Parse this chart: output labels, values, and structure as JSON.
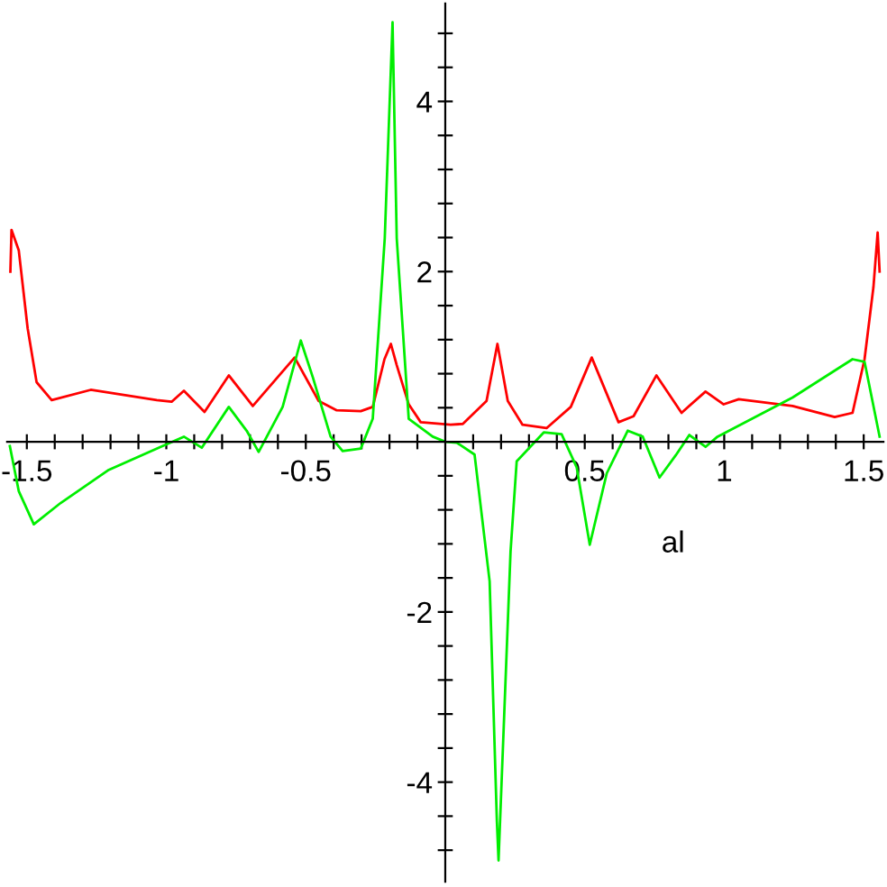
{
  "chart_data": {
    "type": "line",
    "xlabel": "al",
    "xlim": [
      -1.5708,
      1.5708
    ],
    "ylim": [
      -5.17,
      5.15
    ],
    "xticks": [
      {
        "value": -1.5,
        "label": "-1.5"
      },
      {
        "value": -1.4,
        "label": null
      },
      {
        "value": -1.3,
        "label": null
      },
      {
        "value": -1.2,
        "label": null
      },
      {
        "value": -1.1,
        "label": null
      },
      {
        "value": -1,
        "label": "-1"
      },
      {
        "value": -0.9,
        "label": null
      },
      {
        "value": -0.8,
        "label": null
      },
      {
        "value": -0.7,
        "label": null
      },
      {
        "value": -0.6,
        "label": null
      },
      {
        "value": -0.5,
        "label": "-0.5"
      },
      {
        "value": -0.4,
        "label": null
      },
      {
        "value": -0.3,
        "label": null
      },
      {
        "value": -0.2,
        "label": null
      },
      {
        "value": -0.1,
        "label": null
      },
      {
        "value": 0.1,
        "label": null
      },
      {
        "value": 0.2,
        "label": null
      },
      {
        "value": 0.3,
        "label": null
      },
      {
        "value": 0.4,
        "label": null
      },
      {
        "value": 0.5,
        "label": "0.5"
      },
      {
        "value": 0.6,
        "label": null
      },
      {
        "value": 0.7,
        "label": null
      },
      {
        "value": 0.8,
        "label": null
      },
      {
        "value": 0.9,
        "label": null
      },
      {
        "value": 1,
        "label": "1"
      },
      {
        "value": 1.1,
        "label": null
      },
      {
        "value": 1.2,
        "label": null
      },
      {
        "value": 1.3,
        "label": null
      },
      {
        "value": 1.4,
        "label": null
      },
      {
        "value": 1.5,
        "label": "1.5"
      }
    ],
    "yticks": [
      {
        "value": -4.8,
        "label": null
      },
      {
        "value": -4.4,
        "label": null
      },
      {
        "value": -4,
        "label": "-4"
      },
      {
        "value": -3.6,
        "label": null
      },
      {
        "value": -3.2,
        "label": null
      },
      {
        "value": -2.8,
        "label": null
      },
      {
        "value": -2.4,
        "label": null
      },
      {
        "value": -2,
        "label": "-2"
      },
      {
        "value": -1.6,
        "label": null
      },
      {
        "value": -1.2,
        "label": null
      },
      {
        "value": -0.8,
        "label": null
      },
      {
        "value": -0.4,
        "label": null
      },
      {
        "value": 0.4,
        "label": null
      },
      {
        "value": 0.8,
        "label": null
      },
      {
        "value": 1.2,
        "label": null
      },
      {
        "value": 1.6,
        "label": null
      },
      {
        "value": 2,
        "label": "2"
      },
      {
        "value": 2.4,
        "label": null
      },
      {
        "value": 2.8,
        "label": null
      },
      {
        "value": 3.2,
        "label": null
      },
      {
        "value": 3.6,
        "label": null
      },
      {
        "value": 4,
        "label": "4"
      },
      {
        "value": 4.4,
        "label": null
      },
      {
        "value": 4.8,
        "label": null
      }
    ],
    "grid": false,
    "legend": false,
    "marker": "none",
    "line_style": "solid",
    "series": [
      {
        "color": "#ff0000",
        "x": [
          -1.559,
          -1.555,
          -1.529,
          -1.497,
          -1.465,
          -1.411,
          -1.271,
          -1.034,
          -0.981,
          -0.937,
          -0.863,
          -0.776,
          -0.69,
          -0.54,
          -0.454,
          -0.389,
          -0.303,
          -0.26,
          -0.218,
          -0.195,
          -0.174,
          -0.131,
          -0.088,
          0.019,
          0.063,
          0.148,
          0.187,
          0.224,
          0.277,
          0.363,
          0.45,
          0.525,
          0.621,
          0.675,
          0.757,
          0.847,
          0.933,
          0.998,
          1.052,
          1.245,
          1.396,
          1.46,
          1.503,
          1.535,
          1.55,
          1.557
        ],
        "values": [
          2.0,
          2.49,
          2.25,
          1.33,
          0.7,
          0.49,
          0.61,
          0.49,
          0.47,
          0.6,
          0.35,
          0.78,
          0.42,
          0.99,
          0.48,
          0.37,
          0.36,
          0.41,
          0.97,
          1.15,
          0.9,
          0.44,
          0.23,
          0.2,
          0.21,
          0.48,
          1.15,
          0.48,
          0.2,
          0.16,
          0.41,
          0.99,
          0.23,
          0.3,
          0.78,
          0.34,
          0.59,
          0.44,
          0.5,
          0.42,
          0.29,
          0.34,
          0.97,
          1.82,
          2.46,
          2.0
        ]
      },
      {
        "color": "#00ee00",
        "x": [
          -1.561,
          -1.529,
          -1.475,
          -1.379,
          -1.206,
          -1.013,
          -0.937,
          -0.873,
          -0.776,
          -0.712,
          -0.669,
          -0.583,
          -0.518,
          -0.475,
          -0.411,
          -0.368,
          -0.303,
          -0.26,
          -0.217,
          -0.189,
          -0.174,
          -0.131,
          -0.045,
          0.0,
          0.041,
          0.105,
          0.159,
          0.185,
          0.191,
          0.209,
          0.234,
          0.256,
          0.353,
          0.417,
          0.471,
          0.518,
          0.579,
          0.654,
          0.708,
          0.768,
          0.826,
          0.875,
          0.933,
          0.976,
          1.245,
          1.46,
          1.503,
          1.557
        ],
        "values": [
          -0.05,
          -0.58,
          -0.97,
          -0.72,
          -0.33,
          -0.05,
          0.06,
          -0.07,
          0.41,
          0.13,
          -0.12,
          0.41,
          1.19,
          0.76,
          0.06,
          -0.11,
          -0.08,
          0.27,
          2.39,
          4.93,
          2.39,
          0.27,
          0.06,
          0.0,
          -0.01,
          -0.15,
          -1.64,
          -4.46,
          -4.92,
          -3.4,
          -1.29,
          -0.23,
          0.11,
          0.09,
          -0.3,
          -1.21,
          -0.37,
          0.13,
          0.06,
          -0.42,
          -0.16,
          0.08,
          -0.06,
          0.06,
          0.52,
          0.97,
          0.94,
          0.06
        ]
      }
    ]
  }
}
